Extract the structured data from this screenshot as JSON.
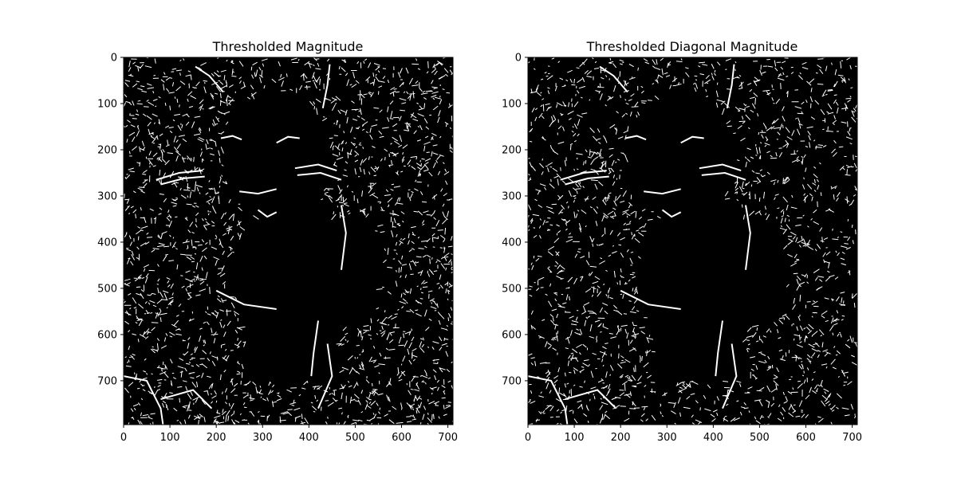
{
  "chart_data": [
    {
      "type": "image",
      "title": "Thresholded Magnitude",
      "colormap": "gray",
      "binary": true,
      "xlim": [
        0,
        711
      ],
      "ylim": [
        795,
        0
      ],
      "xticks": [
        0,
        100,
        200,
        300,
        400,
        500,
        600,
        700
      ],
      "yticks": [
        0,
        100,
        200,
        300,
        400,
        500,
        600,
        700
      ],
      "seed": 11,
      "noise_density": 0.42
    },
    {
      "type": "image",
      "title": "Thresholded Diagonal Magnitude",
      "colormap": "gray",
      "binary": true,
      "xlim": [
        0,
        711
      ],
      "ylim": [
        795,
        0
      ],
      "xticks": [
        0,
        100,
        200,
        300,
        400,
        500,
        600,
        700
      ],
      "yticks": [
        0,
        100,
        200,
        300,
        400,
        500,
        600,
        700
      ],
      "seed": 29,
      "noise_density": 0.36
    }
  ]
}
